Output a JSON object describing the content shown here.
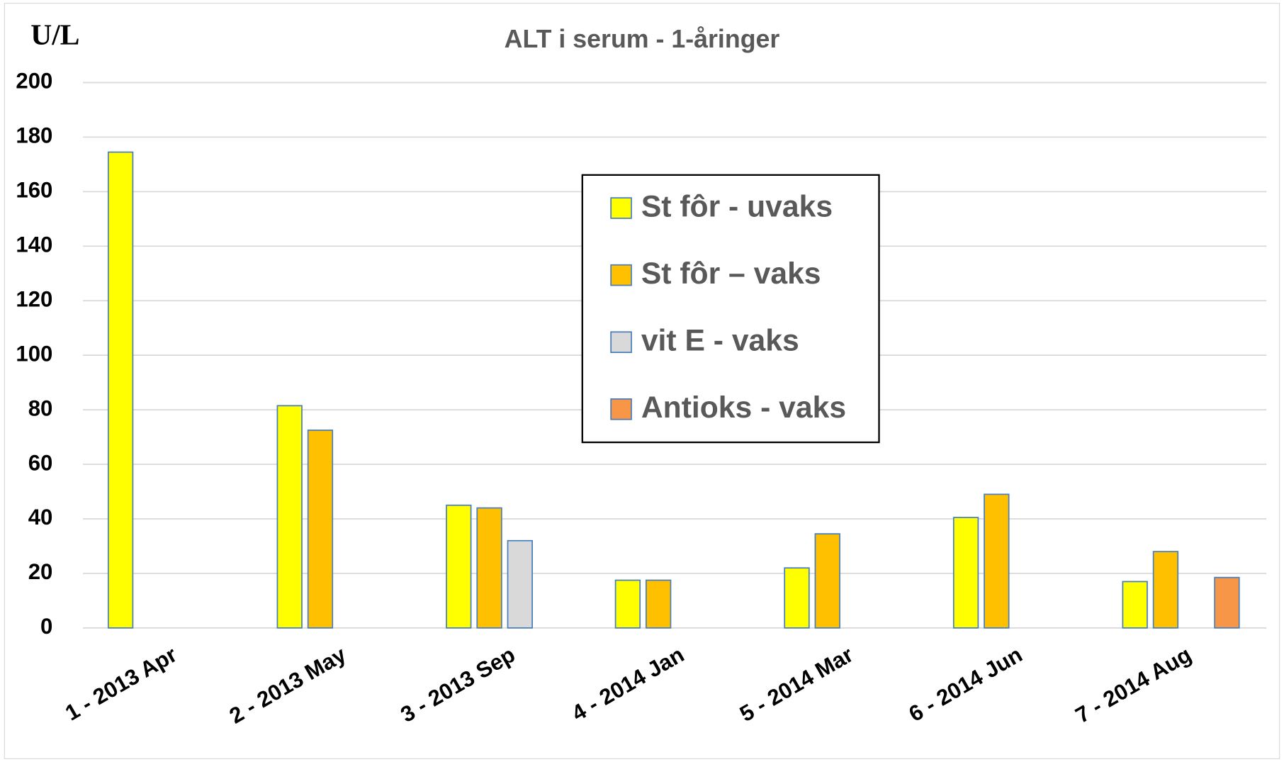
{
  "chart_data": {
    "type": "bar",
    "title": "ALT i serum - 1-åringer",
    "y_label": "U/L",
    "categories": [
      "1 - 2013 Apr",
      "2 - 2013 May",
      "3 - 2013 Sep",
      "4 - 2014 Jan",
      "5 - 2014 Mar",
      "6 - 2014 Jun",
      "7 - 2014 Aug"
    ],
    "series": [
      {
        "name": "St fôr - uvaks",
        "color": "#ffff00",
        "values": [
          174.5,
          81.5,
          45,
          17.5,
          22,
          40.5,
          17
        ]
      },
      {
        "name": "St fôr – vaks",
        "color": "#ffc000",
        "values": [
          null,
          72.5,
          44,
          17.5,
          34.5,
          49,
          28
        ]
      },
      {
        "name": "vit E - vaks",
        "color": "#d9d9d9",
        "values": [
          null,
          null,
          32,
          null,
          null,
          null,
          null
        ]
      },
      {
        "name": "Antioks - vaks",
        "color": "#f79646",
        "values": [
          null,
          null,
          null,
          null,
          null,
          null,
          18.5
        ]
      }
    ],
    "ylim": [
      0,
      200
    ],
    "yticks": [
      0,
      20,
      40,
      60,
      80,
      100,
      120,
      140,
      160,
      180,
      200
    ],
    "grid": true
  }
}
